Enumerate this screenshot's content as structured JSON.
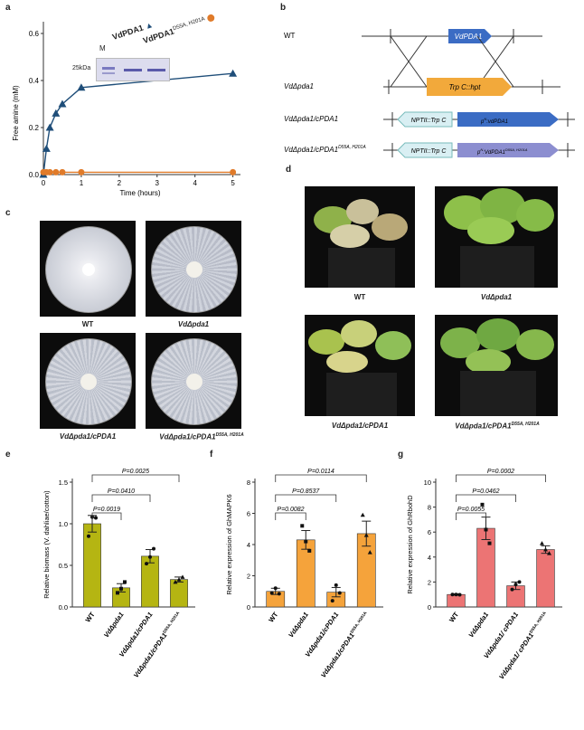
{
  "panels": {
    "a": "a",
    "b": "b",
    "c": "c",
    "d": "d",
    "e": "e",
    "f": "f",
    "g": "g"
  },
  "panel_a": {
    "ylabel": "Free amine (mM)",
    "xlabel": "Time (hours)",
    "yticks": [
      "0.0",
      "0.2",
      "0.4",
      "0.6"
    ],
    "xticks": [
      "0",
      "1",
      "2",
      "3",
      "4",
      "5"
    ],
    "legend": [
      {
        "label": "VdPDA1",
        "color": "#1f4e79",
        "marker": "triangle"
      },
      {
        "label": "VdPDA1",
        "sup": "D55A, H201A",
        "color": "#e07b2a",
        "marker": "circle"
      }
    ],
    "gel": {
      "lane_label": "M",
      "marker": "25kDa"
    }
  },
  "chart_data": [
    {
      "type": "line",
      "xlabel": "Time (hours)",
      "ylabel": "Free amine (mM)",
      "xlim": [
        0,
        5.2
      ],
      "ylim": [
        0,
        0.65
      ],
      "series": [
        {
          "name": "VdPDA1",
          "color": "#1f4e79",
          "x": [
            0,
            0.08,
            0.17,
            0.33,
            0.5,
            1,
            5
          ],
          "y": [
            0.0,
            0.11,
            0.2,
            0.26,
            0.3,
            0.37,
            0.43
          ]
        },
        {
          "name": "VdPDA1 D55A, H201A",
          "color": "#e07b2a",
          "x": [
            0,
            0.08,
            0.17,
            0.33,
            0.5,
            1,
            5
          ],
          "y": [
            0.01,
            0.01,
            0.01,
            0.01,
            0.01,
            0.01,
            0.01
          ]
        }
      ]
    },
    {
      "type": "bar",
      "ylabel": "Relative biomass (V. dahliae/cotton)",
      "ylim": [
        0,
        1.5
      ],
      "yticks": [
        "0.0",
        "0.5",
        "1.0",
        "1.5"
      ],
      "categories": [
        "WT",
        "VdΔpda1",
        "VdΔpda1/cPDA1",
        "VdΔpda1/cPDA1"
      ],
      "category_sup": [
        "",
        "",
        "",
        "D55A, H201A"
      ],
      "values": [
        1.0,
        0.23,
        0.61,
        0.33
      ],
      "errors": [
        0.1,
        0.05,
        0.08,
        0.03
      ],
      "points": [
        [
          0.85,
          1.08,
          1.07
        ],
        [
          0.17,
          0.22,
          0.3
        ],
        [
          0.52,
          0.6,
          0.7
        ],
        [
          0.3,
          0.33,
          0.36
        ]
      ],
      "color": "#b5b512",
      "comparisons": [
        {
          "label": "P=0.0019",
          "to": 1
        },
        {
          "label": "P=0.0410",
          "to": 2
        },
        {
          "label": "P=0.0025",
          "to": 3
        }
      ]
    },
    {
      "type": "bar",
      "ylabel": "Relative expression of GhMAPK6",
      "ylim": [
        0,
        8
      ],
      "yticks": [
        "0",
        "2",
        "4",
        "6",
        "8"
      ],
      "categories": [
        "WT",
        "VdΔpda1",
        "VdΔpda1/cPDA1",
        "VdΔpda1/cPDA1"
      ],
      "category_sup": [
        "",
        "",
        "",
        "D55A, H201A"
      ],
      "values": [
        1.0,
        4.3,
        0.95,
        4.7
      ],
      "errors": [
        0.2,
        0.6,
        0.3,
        0.8
      ],
      "points": [
        [
          0.9,
          1.2,
          0.85
        ],
        [
          5.2,
          4.2,
          3.6
        ],
        [
          0.4,
          1.4,
          0.9
        ],
        [
          5.9,
          4.6,
          3.5
        ]
      ],
      "color": "#f5a33b",
      "comparisons": [
        {
          "label": "P=0.0082",
          "to": 1
        },
        {
          "label": "P=0.8537",
          "to": 2
        },
        {
          "label": "P=0.0114",
          "to": 3
        }
      ]
    },
    {
      "type": "bar",
      "ylabel": "Relative expression of GhRbohD",
      "ylim": [
        0,
        10
      ],
      "yticks": [
        "0",
        "2",
        "4",
        "6",
        "8",
        "10"
      ],
      "categories": [
        "WT",
        "VdΔpda1",
        "VdΔpda1/ cPDA1",
        "VdΔpda1/ cPDA1"
      ],
      "category_sup": [
        "",
        "",
        "",
        "D55A, H201A"
      ],
      "values": [
        1.0,
        6.3,
        1.7,
        4.6
      ],
      "errors": [
        0.05,
        0.9,
        0.3,
        0.3
      ],
      "points": [
        [
          1.0,
          1.0,
          0.98
        ],
        [
          8.2,
          6.2,
          5.1
        ],
        [
          1.4,
          1.8,
          2.0
        ],
        [
          5.1,
          4.6,
          4.3
        ]
      ],
      "color": "#ec7474",
      "comparisons": [
        {
          "label": "P=0.0055",
          "to": 1
        },
        {
          "label": "P=0.0462",
          "to": 2
        },
        {
          "label": "P=0.0002",
          "to": 3
        }
      ]
    }
  ],
  "panel_b": {
    "rows": [
      {
        "label": "WT",
        "italic": false,
        "gene": "VdPDA1"
      },
      {
        "label": "VdΔpda1",
        "italic": true,
        "gene": "Trp C::hpt"
      },
      {
        "label": "VdΔpda1/cPDA1",
        "italic": true,
        "marker": "NPTII::Trp C",
        "promoter": "p",
        "promoter_sup": "N",
        "gene": ":vdPDA1"
      },
      {
        "label": "VdΔpda1/cPDA1",
        "label_sup": "D55A, H201A",
        "italic": true,
        "marker": "NPTII::Trp C",
        "promoter": "p",
        "promoter_sup": "N",
        "gene": ":VdPDA1",
        "gene_sup": "D55A, H201A"
      }
    ]
  },
  "panel_c": {
    "captions": [
      "WT",
      "VdΔpda1",
      "VdΔpda1/cPDA1",
      "VdΔpda1/cPDA1"
    ],
    "caption_sup": [
      "",
      "",
      "",
      "D55A, H201A"
    ]
  },
  "panel_d": {
    "captions": [
      "WT",
      "VdΔpda1",
      "VdΔpda1/cPDA1",
      "VdΔpda1/cPDA1"
    ],
    "caption_sup": [
      "",
      "",
      "",
      "D55A, H201A"
    ]
  }
}
